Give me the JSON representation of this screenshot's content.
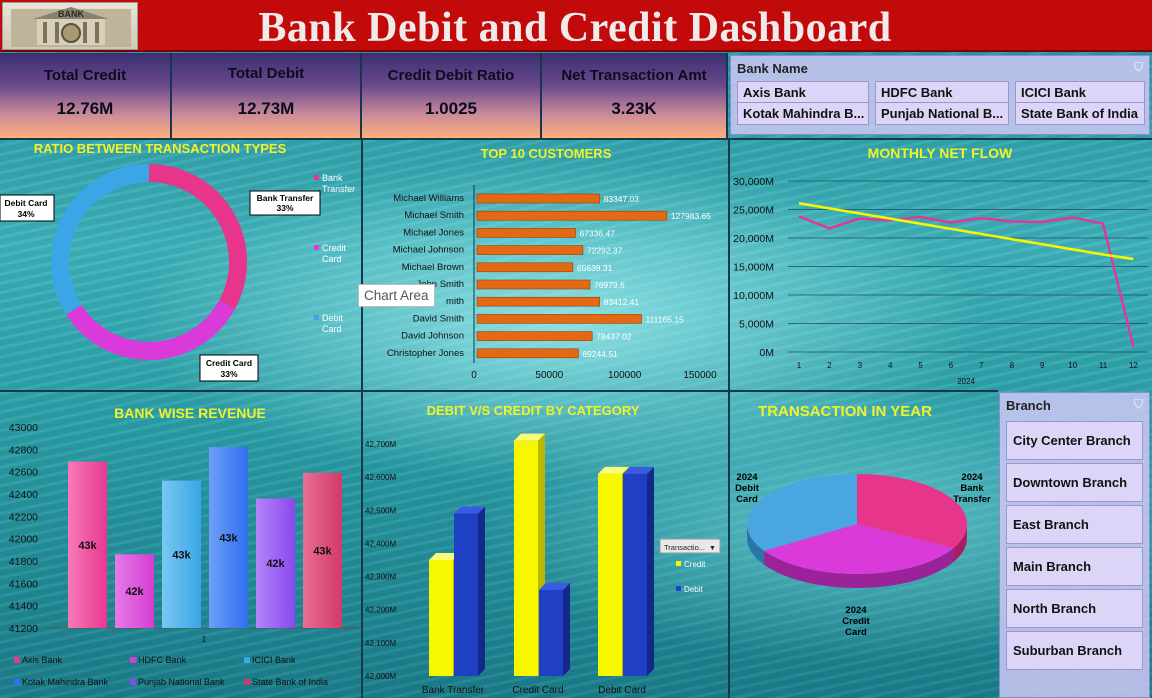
{
  "title": "Bank Debit and Credit Dashboard",
  "logo_text": "BANK",
  "kpis": [
    {
      "label": "Total Credit",
      "value": "12.76M"
    },
    {
      "label": "Total Debit",
      "value": "12.73M"
    },
    {
      "label": "Credit Debit Ratio",
      "value": "1.0025"
    },
    {
      "label": "Net Transaction Amt",
      "value": "3.23K"
    }
  ],
  "bank_slicer": {
    "header": "Bank Name",
    "items": [
      "Axis Bank",
      "HDFC Bank",
      "ICICI Bank",
      "Kotak Mahindra B...",
      "Punjab National B...",
      "State Bank of India"
    ]
  },
  "branch_slicer": {
    "header": "Branch",
    "items": [
      "City Center Branch",
      "Downtown Branch",
      "East Branch",
      "Main Branch",
      "North Branch",
      "Suburban Branch"
    ]
  },
  "tooltip": "Chart Area",
  "colors": {
    "pink": "#e6358a",
    "magenta": "#d93ad9",
    "blue": "#3aa6e6",
    "orange": "#e36a12",
    "yellow": "#f7f700",
    "navy": "#1f3fc4"
  },
  "chart_data": [
    {
      "type": "pie",
      "title": "RATIO BETWEEN TRANSACTION TYPES",
      "categories": [
        "Bank Transfer",
        "Credit Card",
        "Debit Card"
      ],
      "values": [
        33,
        33,
        34
      ],
      "data_labels": [
        [
          "Bank Transfer",
          "33%"
        ],
        [
          "Credit Card",
          "33%"
        ],
        [
          "Debit Card",
          "34%"
        ]
      ],
      "legend": [
        "Bank Transfer",
        "Credit Card",
        "Debit Card"
      ],
      "legend_placement": "right"
    },
    {
      "type": "bar",
      "orientation": "horizontal",
      "title": "TOP  10 CUSTOMERS",
      "categories": [
        "Michael Williams",
        "Michael Smith",
        "Michael Jones",
        "Michael Johnson",
        "Michael Brown",
        "John Smith",
        "Jane Smith",
        "David Smith",
        "David Johnson",
        "Christopher Jones"
      ],
      "category_labels": [
        "Michael Williams",
        "Michael Smith",
        "Michael Jones",
        "Michael Johnson",
        "Michael Brown",
        "John Smith",
        "mith",
        "David Smith",
        "David Johnson",
        "Christopher Jones"
      ],
      "values": [
        83347.03,
        127983.65,
        67336.47,
        72292.37,
        65639.31,
        76979.6,
        83412.41,
        111165.15,
        78437.02,
        69244.51
      ],
      "value_labels": [
        "83347.03",
        "127983.65",
        "67336.47",
        "72292.37",
        "65639.31",
        "76979.6",
        "83412.41",
        "111165.15",
        "78437.02",
        "69244.51"
      ],
      "xlim": [
        0,
        150000
      ],
      "ticks": [
        "0",
        "50000",
        "100000",
        "150000"
      ]
    },
    {
      "type": "line",
      "title": "MONTHLY NET FLOW",
      "x": [
        1,
        2,
        3,
        4,
        5,
        6,
        7,
        8,
        9,
        10,
        11,
        12
      ],
      "x_labels": [
        "1",
        "2",
        "3",
        "4",
        "5",
        "6",
        "7",
        "8",
        "9",
        "10",
        "11",
        "12"
      ],
      "xlabel": "2024",
      "series": [
        {
          "name": "Net Flow",
          "values": [
            23800,
            21700,
            23400,
            23100,
            23700,
            22700,
            23500,
            22900,
            22800,
            23600,
            22500,
            900
          ]
        },
        {
          "name": "Trend",
          "values": [
            26100,
            25200,
            24300,
            23400,
            22500,
            21600,
            20700,
            19800,
            18900,
            18000,
            17100,
            16300
          ]
        }
      ],
      "ylim": [
        0,
        30000
      ],
      "ticks": [
        "0M",
        "5,000M",
        "10,000M",
        "15,000M",
        "20,000M",
        "25,000M",
        "30,000M"
      ]
    },
    {
      "type": "bar",
      "title": "BANK WISE REVENUE",
      "categories": [
        "Axis Bank",
        "HDFC Bank",
        "ICICI Bank",
        "Kotak Mahindra Bank",
        "Punjab National Bank",
        "State Bank of India"
      ],
      "values": [
        42690,
        41860,
        42520,
        42820,
        42360,
        42590
      ],
      "value_labels": [
        "43k",
        "42k",
        "43k",
        "43k",
        "42k",
        "43k"
      ],
      "ylim": [
        41200,
        43000
      ],
      "ticks": [
        "41200",
        "41400",
        "41600",
        "41800",
        "42000",
        "42200",
        "42400",
        "42600",
        "42800",
        "43000"
      ],
      "x_label": "1",
      "legend": [
        "Axis Bank",
        "HDFC Bank",
        "ICICI Bank",
        "Kotak Mahindra Bank",
        "Punjab National Bank",
        "State Bank of India"
      ]
    },
    {
      "type": "bar",
      "title": "DEBIT V/S CREDIT  BY CATEGORY",
      "categories": [
        "Bank Transfer",
        "Credit Card",
        "Debit Card"
      ],
      "series": [
        {
          "name": "Credit",
          "values": [
            42350,
            42710,
            42610
          ]
        },
        {
          "name": "Debit",
          "values": [
            42490,
            42260,
            42610
          ]
        }
      ],
      "ylim": [
        42000,
        42700
      ],
      "ticks": [
        "42,000M",
        "42,100M",
        "42,200M",
        "42,300M",
        "42,400M",
        "42,500M",
        "42,600M",
        "42,700M"
      ],
      "filter_label": "Transactio...",
      "legend": [
        "Credit",
        "Debit"
      ]
    },
    {
      "type": "pie",
      "title": "TRANSACTION IN YEAR",
      "categories": [
        "2024 Bank Transfer",
        "2024 Credit Card",
        "2024 Debit Card"
      ],
      "values": [
        33,
        33,
        34
      ],
      "data_labels": [
        [
          "2024",
          "Bank",
          "Transfer"
        ],
        [
          "2024",
          "Credit",
          "Card"
        ],
        [
          "2024",
          "Debit",
          "Card"
        ]
      ]
    }
  ]
}
